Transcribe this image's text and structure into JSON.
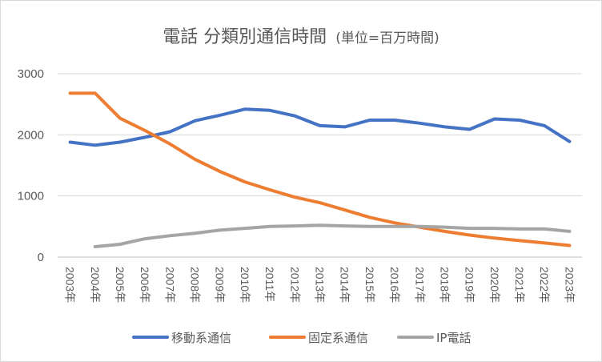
{
  "chart_data": {
    "type": "line",
    "title": "電話 分類別通信時間",
    "subtitle": "(単位=百万時間)",
    "xlabel": "",
    "ylabel": "",
    "ylim": [
      0,
      3000
    ],
    "yticks": [
      0,
      1000,
      2000,
      3000
    ],
    "grid": "horizontal",
    "legend_position": "bottom",
    "categories": [
      "2003年",
      "2004年",
      "2005年",
      "2006年",
      "2007年",
      "2008年",
      "2009年",
      "2010年",
      "2011年",
      "2012年",
      "2013年",
      "2014年",
      "2015年",
      "2016年",
      "2017年",
      "2018年",
      "2019年",
      "2020年",
      "2021年",
      "2022年",
      "2023年"
    ],
    "series": [
      {
        "name": "移動系通信",
        "color": "#4472c4",
        "values": [
          1880,
          1830,
          1880,
          1960,
          2050,
          2230,
          2320,
          2420,
          2400,
          2310,
          2150,
          2130,
          2240,
          2240,
          2190,
          2130,
          2090,
          2260,
          2240,
          2150,
          1890
        ]
      },
      {
        "name": "固定系通信",
        "color": "#ed7d31",
        "values": [
          2680,
          2680,
          2270,
          2070,
          1850,
          1600,
          1400,
          1230,
          1100,
          980,
          890,
          770,
          650,
          560,
          490,
          420,
          360,
          310,
          270,
          230,
          190
        ]
      },
      {
        "name": "IP電話",
        "color": "#a5a5a5",
        "values": [
          null,
          170,
          210,
          300,
          350,
          390,
          440,
          470,
          500,
          510,
          520,
          510,
          500,
          500,
          500,
          490,
          470,
          470,
          460,
          460,
          420
        ]
      }
    ]
  }
}
